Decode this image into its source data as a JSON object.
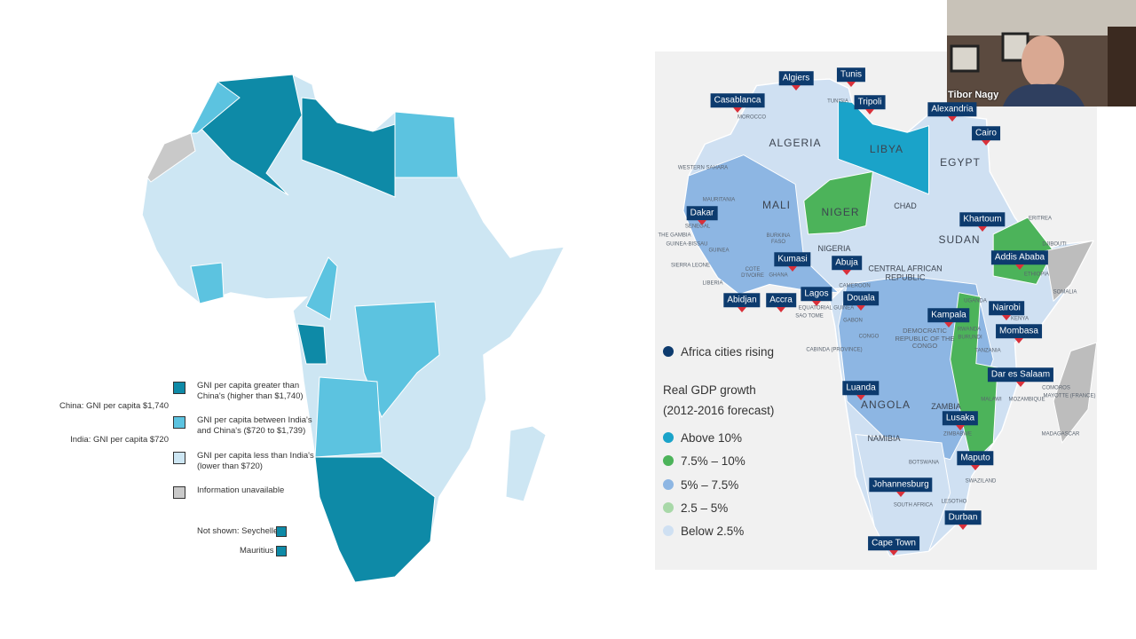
{
  "left_map": {
    "legend": [
      {
        "label": "GNI per capita greater than China's (higher than $1,740)",
        "color": "#0e8aa7"
      },
      {
        "label": "GNI per capita between India's and China's ($720 to $1,739)",
        "color": "#5cc3e0"
      },
      {
        "label": "GNI per capita less than India's (lower than $720)",
        "color": "#cde6f3"
      },
      {
        "label": "Information unavailable",
        "color": "#c9c9c9"
      }
    ],
    "thresholds": [
      "China: GNI per capita $1,740",
      "India: GNI per capita $720"
    ],
    "not_shown": [
      {
        "label": "Not shown: Seychelles",
        "color": "#0e8aa7"
      },
      {
        "label": "Mauritius",
        "color": "#0e8aa7"
      }
    ]
  },
  "right_map": {
    "cities": [
      "Algiers",
      "Tunis",
      "Casablanca",
      "Tripoli",
      "Alexandria",
      "Cairo",
      "Dakar",
      "Khartoum",
      "Kumasi",
      "Abuja",
      "Addis Ababa",
      "Abidjan",
      "Accra",
      "Lagos",
      "Douala",
      "Nairobi",
      "Kampala",
      "Mombasa",
      "Dar es Salaam",
      "Luanda",
      "Lusaka",
      "Maputo",
      "Johannesburg",
      "Durban",
      "Cape Town"
    ],
    "countries": [
      "ALGERIA",
      "LIBYA",
      "EGYPT",
      "MALI",
      "NIGER",
      "CHAD",
      "SUDAN",
      "ANGOLA",
      "ZAMBIA",
      "NIGERIA",
      "CENTRAL AFRICAN REPUBLIC",
      "DEMOCRATIC REPUBLIC OF THE CONGO",
      "NAMIBIA",
      "SOUTH AFRICA",
      "MOROCCO",
      "TUNISIA",
      "MAURITANIA",
      "WESTERN SAHARA",
      "ERITREA",
      "DJIBOUTI",
      "SOMALIA",
      "ETHIOPIA",
      "SENEGAL",
      "THE GAMBIA",
      "GUINEA-BISSAU",
      "GUINEA",
      "SIERRA LEONE",
      "LIBERIA",
      "COTE D'IVOIRE",
      "BURKINA FASO",
      "GHANA",
      "CAMEROON",
      "EQUATORIAL GUINEA",
      "SAO TOME",
      "GABON",
      "CONGO",
      "CABINDA (PROVINCE)",
      "UGANDA",
      "KENYA",
      "RWANDA",
      "BURUNDI",
      "TANZANIA",
      "COMOROS",
      "MAYOTTE (FRANCE)",
      "MALAWI",
      "MOZAMBIQUE",
      "MADAGASCAR",
      "ZIMBABWE",
      "BOTSWANA",
      "SWAZILAND",
      "LESOTHO"
    ],
    "cities_legend": {
      "label": "Africa cities rising",
      "color": "#0d3b6e"
    },
    "legend_title": "Real GDP growth",
    "legend_subtitle": "(2012-2016 forecast)",
    "legend": [
      {
        "label": "Above 10%",
        "color": "#1aa3c9"
      },
      {
        "label": "7.5% – 10%",
        "color": "#4cb35a"
      },
      {
        "label": "5% – 7.5%",
        "color": "#8db6e3"
      },
      {
        "label": "2.5 – 5%",
        "color": "#a8d8a8"
      },
      {
        "label": "Below 2.5%",
        "color": "#cfe0f2"
      }
    ]
  },
  "webcam": {
    "name": "Tibor Nagy"
  }
}
